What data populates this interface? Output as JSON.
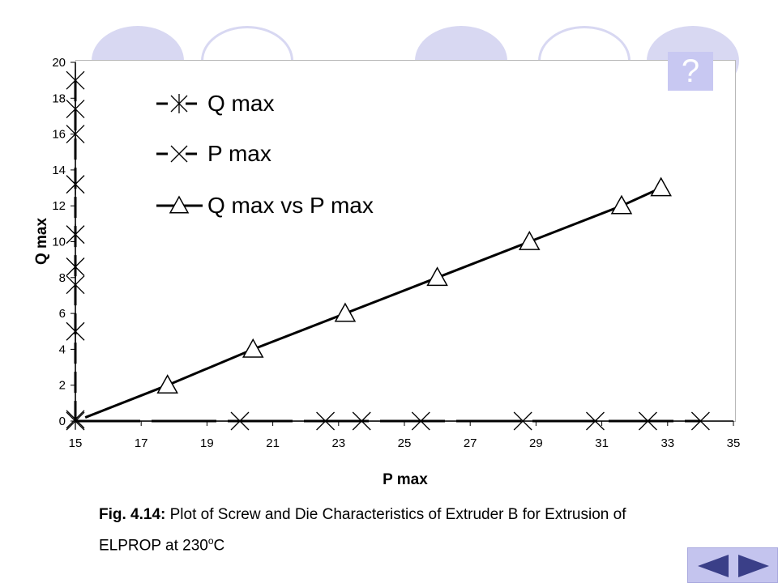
{
  "help": {
    "label": "?"
  },
  "caption": {
    "fig_label": "Fig. 4.14:",
    "line1": " Plot of Screw and Die Characteristics of Extruder B for Extrusion of",
    "line2_prefix": "ELPROP at 230",
    "superscript": "o",
    "line2_suffix": "C"
  },
  "navigation": {
    "prev": "previous-slide",
    "next": "next-slide"
  },
  "colors": {
    "decor": "#d8d8f2",
    "button": "#c4c4ee",
    "ink": "#000000"
  },
  "chart_data": {
    "type": "line",
    "xlabel": "P max",
    "ylabel": "Q max",
    "xlim": [
      15,
      35
    ],
    "ylim": [
      0,
      20
    ],
    "x_ticks": [
      15,
      17,
      19,
      21,
      23,
      25,
      27,
      29,
      31,
      33,
      35
    ],
    "y_ticks": [
      0,
      2,
      4,
      6,
      8,
      10,
      12,
      14,
      16,
      18,
      20
    ],
    "legend_placement": "top-left",
    "grid": false,
    "series": [
      {
        "name": "Q max",
        "marker": "asterisk",
        "x": [
          15,
          15,
          15,
          15,
          15,
          15,
          15,
          15,
          15
        ],
        "y": [
          5,
          7.6,
          8.6,
          10.4,
          13.2,
          16,
          17.4,
          19,
          0.1
        ]
      },
      {
        "name": "P max",
        "marker": "x",
        "x": [
          15,
          20,
          22.6,
          23.7,
          25.5,
          28.6,
          30.8,
          32.4,
          34
        ],
        "y": [
          0,
          0,
          0,
          0,
          0,
          0,
          0,
          0,
          0
        ]
      },
      {
        "name": "Q max vs P max",
        "marker": "triangle",
        "x": [
          17.8,
          20.4,
          23.2,
          26,
          28.8,
          31.6,
          32.8
        ],
        "y": [
          2,
          4,
          6,
          8,
          10,
          12,
          13
        ],
        "line_start": [
          15.3,
          0.2
        ]
      }
    ]
  }
}
